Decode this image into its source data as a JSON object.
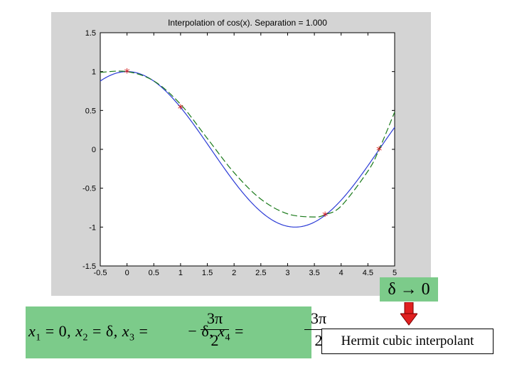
{
  "chart_data": {
    "type": "line",
    "title": "Interpolation of cos(x). Separation = 1.000",
    "xlim": [
      -0.5,
      5
    ],
    "ylim": [
      -1.5,
      1.5
    ],
    "xticks": [
      "-0.5",
      "0",
      "0.5",
      "1",
      "1.5",
      "2",
      "2.5",
      "3",
      "3.5",
      "4",
      "4.5",
      "5"
    ],
    "yticks": [
      "1.5",
      "1",
      "0.5",
      "0",
      "-0.5",
      "-1",
      "-1.5"
    ],
    "grid": false,
    "series": [
      {
        "style": "solid",
        "color": "#2b3bd6",
        "function": "cos(x)",
        "x_range": [
          -0.5,
          5
        ]
      },
      {
        "style": "dashed",
        "color": "#1a7a1a",
        "x": [
          -0.5,
          0,
          0.5,
          1,
          1.5,
          2,
          2.5,
          3,
          3.5,
          3.7,
          4,
          4.5,
          4.71,
          5
        ],
        "y": [
          0.99,
          1,
          0.88,
          0.58,
          0.14,
          -0.3,
          -0.64,
          -0.83,
          -0.87,
          -0.84,
          -0.73,
          -0.28,
          0,
          0.48
        ]
      },
      {
        "style": "markers",
        "color": "#d01010",
        "marker": "*",
        "x": [
          0,
          1,
          3.7,
          4.71
        ],
        "y": [
          1,
          0.54,
          -0.84,
          0
        ]
      }
    ]
  },
  "annotations": {
    "delta_label": "δ → 0",
    "formula": {
      "x1": "x",
      "sub1": "1",
      "eq0": " = 0, ",
      "x2": "x",
      "sub2": "2",
      "eqd": " = δ, ",
      "x3": "x",
      "sub3": "3",
      "eq3": " = ",
      "mid": " − δ, ",
      "x4": "x",
      "sub4": "4",
      "eq4": " = ",
      "num": "3π",
      "den": "2"
    },
    "hermit_label": "Hermit cubic interpolant"
  },
  "colors": {
    "panel_bg": "#d4d4d4",
    "box_green": "#7ccb8a",
    "arrow_red": "#e02020"
  }
}
